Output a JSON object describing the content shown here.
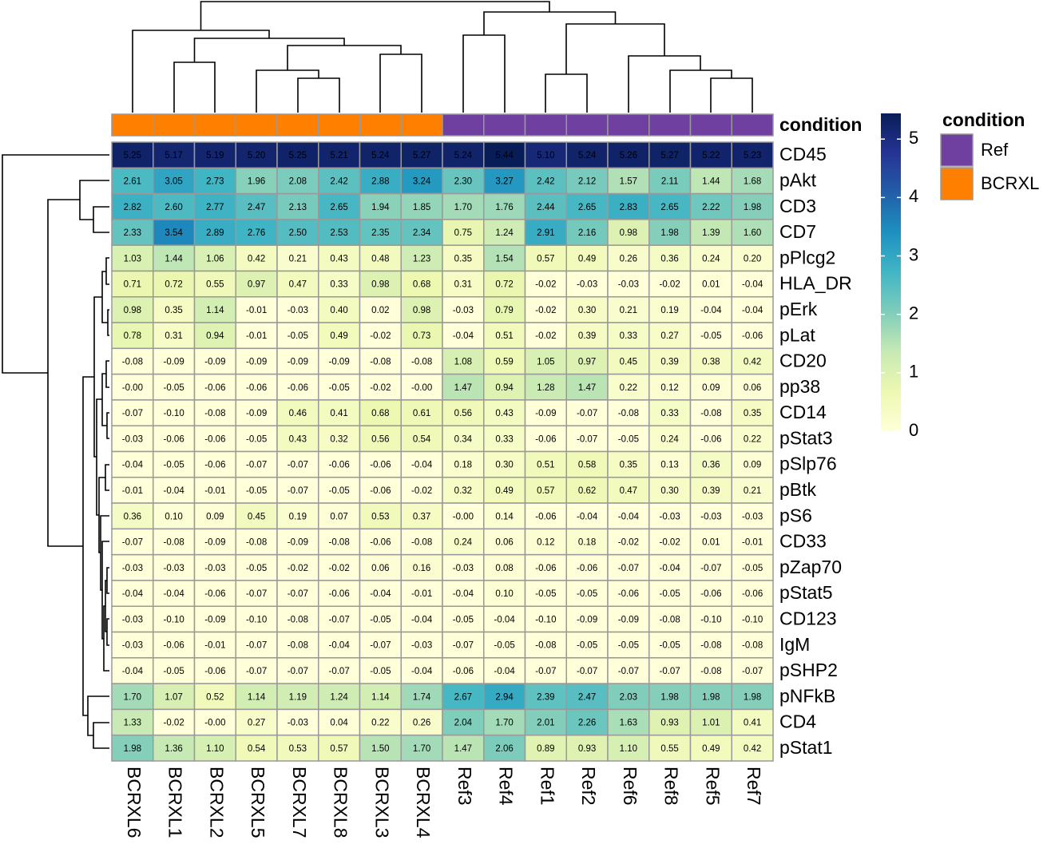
{
  "chart_data": {
    "type": "heatmap",
    "categories": [
      "BCRXL6",
      "BCRXL1",
      "BCRXL2",
      "BCRXL5",
      "BCRXL7",
      "BCRXL8",
      "BCRXL3",
      "BCRXL4",
      "Ref3",
      "Ref4",
      "Ref1",
      "Ref2",
      "Ref6",
      "Ref8",
      "Ref5",
      "Ref7"
    ],
    "rows": [
      "CD45",
      "pAkt",
      "CD3",
      "CD7",
      "pPlcg2",
      "HLA_DR",
      "pErk",
      "pLat",
      "CD20",
      "pp38",
      "CD14",
      "pStat3",
      "pSlp76",
      "pBtk",
      "pS6",
      "CD33",
      "pZap70",
      "pStat5",
      "CD123",
      "IgM",
      "pSHP2",
      "pNFkB",
      "CD4",
      "pStat1"
    ],
    "values": [
      [
        5.25,
        5.17,
        5.19,
        5.2,
        5.25,
        5.21,
        5.24,
        5.27,
        5.24,
        5.44,
        5.1,
        5.24,
        5.26,
        5.27,
        5.22,
        5.23
      ],
      [
        2.61,
        3.05,
        2.73,
        1.96,
        2.08,
        2.42,
        2.88,
        3.24,
        2.3,
        3.27,
        2.42,
        2.12,
        1.57,
        2.11,
        1.44,
        1.68
      ],
      [
        2.82,
        2.6,
        2.77,
        2.47,
        2.13,
        2.65,
        1.94,
        1.85,
        1.7,
        1.76,
        2.44,
        2.65,
        2.83,
        2.65,
        2.22,
        1.98
      ],
      [
        2.33,
        3.54,
        2.89,
        2.76,
        2.5,
        2.53,
        2.35,
        2.34,
        0.75,
        1.24,
        2.91,
        2.16,
        0.98,
        1.98,
        1.39,
        1.6
      ],
      [
        1.03,
        1.44,
        1.06,
        0.42,
        0.21,
        0.43,
        0.48,
        1.23,
        0.35,
        1.54,
        0.57,
        0.49,
        0.26,
        0.36,
        0.24,
        0.2
      ],
      [
        0.71,
        0.72,
        0.55,
        0.97,
        0.47,
        0.33,
        0.98,
        0.68,
        0.31,
        0.72,
        -0.02,
        -0.03,
        -0.03,
        -0.02,
        0.01,
        -0.04
      ],
      [
        0.98,
        0.35,
        1.14,
        -0.01,
        -0.03,
        0.4,
        0.02,
        0.98,
        -0.03,
        0.79,
        -0.02,
        0.3,
        0.21,
        0.19,
        -0.04,
        -0.04
      ],
      [
        0.78,
        0.31,
        0.94,
        -0.01,
        -0.05,
        0.49,
        -0.02,
        0.73,
        -0.04,
        0.51,
        -0.02,
        0.39,
        0.33,
        0.27,
        -0.05,
        -0.06
      ],
      [
        -0.08,
        -0.09,
        -0.09,
        -0.09,
        -0.09,
        -0.09,
        -0.08,
        -0.08,
        1.08,
        0.59,
        1.05,
        0.97,
        0.45,
        0.39,
        0.38,
        0.42
      ],
      [
        -0.0,
        -0.05,
        -0.06,
        -0.06,
        -0.06,
        -0.05,
        -0.02,
        -0.0,
        1.47,
        0.94,
        1.28,
        1.47,
        0.22,
        0.12,
        0.09,
        0.06
      ],
      [
        -0.07,
        -0.1,
        -0.08,
        -0.09,
        0.46,
        0.41,
        0.68,
        0.61,
        0.56,
        0.43,
        -0.09,
        -0.07,
        -0.08,
        0.33,
        -0.08,
        0.35
      ],
      [
        -0.03,
        -0.06,
        -0.06,
        -0.05,
        0.43,
        0.32,
        0.56,
        0.54,
        0.34,
        0.33,
        -0.06,
        -0.07,
        -0.05,
        0.24,
        -0.06,
        0.22
      ],
      [
        -0.04,
        -0.05,
        -0.06,
        -0.07,
        -0.07,
        -0.06,
        -0.06,
        -0.04,
        0.18,
        0.3,
        0.51,
        0.58,
        0.35,
        0.13,
        0.36,
        0.09
      ],
      [
        -0.01,
        -0.04,
        -0.01,
        -0.05,
        -0.07,
        -0.05,
        -0.06,
        -0.02,
        0.32,
        0.49,
        0.57,
        0.62,
        0.47,
        0.3,
        0.39,
        0.21
      ],
      [
        0.36,
        0.1,
        0.09,
        0.45,
        0.19,
        0.07,
        0.53,
        0.37,
        -0.0,
        0.14,
        -0.06,
        -0.04,
        -0.04,
        -0.03,
        -0.03,
        -0.03
      ],
      [
        -0.07,
        -0.08,
        -0.09,
        -0.08,
        -0.09,
        -0.08,
        -0.06,
        -0.08,
        0.24,
        0.06,
        0.12,
        0.18,
        -0.02,
        -0.02,
        0.01,
        -0.01
      ],
      [
        -0.03,
        -0.03,
        -0.03,
        -0.05,
        -0.02,
        -0.02,
        0.06,
        0.16,
        -0.03,
        0.08,
        -0.06,
        -0.06,
        -0.07,
        -0.04,
        -0.07,
        -0.05
      ],
      [
        -0.04,
        -0.04,
        -0.06,
        -0.07,
        -0.07,
        -0.06,
        -0.04,
        -0.01,
        -0.04,
        0.1,
        -0.05,
        -0.05,
        -0.06,
        -0.05,
        -0.06,
        -0.06
      ],
      [
        -0.03,
        -0.1,
        -0.09,
        -0.1,
        -0.08,
        -0.07,
        -0.05,
        -0.04,
        -0.05,
        -0.04,
        -0.1,
        -0.09,
        -0.09,
        -0.08,
        -0.1,
        -0.1
      ],
      [
        -0.03,
        -0.06,
        -0.01,
        -0.07,
        -0.08,
        -0.04,
        -0.07,
        -0.03,
        -0.07,
        -0.05,
        -0.08,
        -0.05,
        -0.05,
        -0.05,
        -0.08,
        -0.08
      ],
      [
        -0.04,
        -0.05,
        -0.06,
        -0.07,
        -0.07,
        -0.07,
        -0.05,
        -0.04,
        -0.06,
        -0.04,
        -0.07,
        -0.07,
        -0.07,
        -0.07,
        -0.08,
        -0.07
      ],
      [
        1.7,
        1.07,
        0.52,
        1.14,
        1.19,
        1.24,
        1.14,
        1.74,
        2.67,
        2.94,
        2.39,
        2.47,
        2.03,
        1.98,
        1.98,
        1.98
      ],
      [
        1.33,
        -0.02,
        -0.0,
        0.27,
        -0.03,
        0.04,
        0.22,
        0.26,
        2.04,
        1.7,
        2.01,
        2.26,
        1.63,
        0.93,
        1.01,
        0.41
      ],
      [
        1.98,
        1.36,
        1.1,
        0.54,
        0.53,
        0.57,
        1.5,
        1.7,
        1.47,
        2.06,
        0.89,
        0.93,
        1.1,
        0.55,
        0.49,
        0.42
      ]
    ],
    "value_labels": [
      [
        "5.25",
        "5.17",
        "5.19",
        "5.20",
        "5.25",
        "5.21",
        "5.24",
        "5.27",
        "5.24",
        "5.44",
        "5.10",
        "5.24",
        "5.26",
        "5.27",
        "5.22",
        "5.23"
      ],
      [
        "2.61",
        "3.05",
        "2.73",
        "1.96",
        "2.08",
        "2.42",
        "2.88",
        "3.24",
        "2.30",
        "3.27",
        "2.42",
        "2.12",
        "1.57",
        "2.11",
        "1.44",
        "1.68"
      ],
      [
        "2.82",
        "2.60",
        "2.77",
        "2.47",
        "2.13",
        "2.65",
        "1.94",
        "1.85",
        "1.70",
        "1.76",
        "2.44",
        "2.65",
        "2.83",
        "2.65",
        "2.22",
        "1.98"
      ],
      [
        "2.33",
        "3.54",
        "2.89",
        "2.76",
        "2.50",
        "2.53",
        "2.35",
        "2.34",
        "0.75",
        "1.24",
        "2.91",
        "2.16",
        "0.98",
        "1.98",
        "1.39",
        "1.60"
      ],
      [
        "1.03",
        "1.44",
        "1.06",
        "0.42",
        "0.21",
        "0.43",
        "0.48",
        "1.23",
        "0.35",
        "1.54",
        "0.57",
        "0.49",
        "0.26",
        "0.36",
        "0.24",
        "0.20"
      ],
      [
        "0.71",
        "0.72",
        "0.55",
        "0.97",
        "0.47",
        "0.33",
        "0.98",
        "0.68",
        "0.31",
        "0.72",
        "-0.02",
        "-0.03",
        "-0.03",
        "-0.02",
        "0.01",
        "-0.04"
      ],
      [
        "0.98",
        "0.35",
        "1.14",
        "-0.01",
        "-0.03",
        "0.40",
        "0.02",
        "0.98",
        "-0.03",
        "0.79",
        "-0.02",
        "0.30",
        "0.21",
        "0.19",
        "-0.04",
        "-0.04"
      ],
      [
        "0.78",
        "0.31",
        "0.94",
        "-0.01",
        "-0.05",
        "0.49",
        "-0.02",
        "0.73",
        "-0.04",
        "0.51",
        "-0.02",
        "0.39",
        "0.33",
        "0.27",
        "-0.05",
        "-0.06"
      ],
      [
        "-0.08",
        "-0.09",
        "-0.09",
        "-0.09",
        "-0.09",
        "-0.09",
        "-0.08",
        "-0.08",
        "1.08",
        "0.59",
        "1.05",
        "0.97",
        "0.45",
        "0.39",
        "0.38",
        "0.42"
      ],
      [
        "-0.00",
        "-0.05",
        "-0.06",
        "-0.06",
        "-0.06",
        "-0.05",
        "-0.02",
        "-0.00",
        "1.47",
        "0.94",
        "1.28",
        "1.47",
        "0.22",
        "0.12",
        "0.09",
        "0.06"
      ],
      [
        "-0.07",
        "-0.10",
        "-0.08",
        "-0.09",
        "0.46",
        "0.41",
        "0.68",
        "0.61",
        "0.56",
        "0.43",
        "-0.09",
        "-0.07",
        "-0.08",
        "0.33",
        "-0.08",
        "0.35"
      ],
      [
        "-0.03",
        "-0.06",
        "-0.06",
        "-0.05",
        "0.43",
        "0.32",
        "0.56",
        "0.54",
        "0.34",
        "0.33",
        "-0.06",
        "-0.07",
        "-0.05",
        "0.24",
        "-0.06",
        "0.22"
      ],
      [
        "-0.04",
        "-0.05",
        "-0.06",
        "-0.07",
        "-0.07",
        "-0.06",
        "-0.06",
        "-0.04",
        "0.18",
        "0.30",
        "0.51",
        "0.58",
        "0.35",
        "0.13",
        "0.36",
        "0.09"
      ],
      [
        "-0.01",
        "-0.04",
        "-0.01",
        "-0.05",
        "-0.07",
        "-0.05",
        "-0.06",
        "-0.02",
        "0.32",
        "0.49",
        "0.57",
        "0.62",
        "0.47",
        "0.30",
        "0.39",
        "0.21"
      ],
      [
        "0.36",
        "0.10",
        "0.09",
        "0.45",
        "0.19",
        "0.07",
        "0.53",
        "0.37",
        "-0.00",
        "0.14",
        "-0.06",
        "-0.04",
        "-0.04",
        "-0.03",
        "-0.03",
        "-0.03"
      ],
      [
        "-0.07",
        "-0.08",
        "-0.09",
        "-0.08",
        "-0.09",
        "-0.08",
        "-0.06",
        "-0.08",
        "0.24",
        "0.06",
        "0.12",
        "0.18",
        "-0.02",
        "-0.02",
        "0.01",
        "-0.01"
      ],
      [
        "-0.03",
        "-0.03",
        "-0.03",
        "-0.05",
        "-0.02",
        "-0.02",
        "0.06",
        "0.16",
        "-0.03",
        "0.08",
        "-0.06",
        "-0.06",
        "-0.07",
        "-0.04",
        "-0.07",
        "-0.05"
      ],
      [
        "-0.04",
        "-0.04",
        "-0.06",
        "-0.07",
        "-0.07",
        "-0.06",
        "-0.04",
        "-0.01",
        "-0.04",
        "0.10",
        "-0.05",
        "-0.05",
        "-0.06",
        "-0.05",
        "-0.06",
        "-0.06"
      ],
      [
        "-0.03",
        "-0.10",
        "-0.09",
        "-0.10",
        "-0.08",
        "-0.07",
        "-0.05",
        "-0.04",
        "-0.05",
        "-0.04",
        "-0.10",
        "-0.09",
        "-0.09",
        "-0.08",
        "-0.10",
        "-0.10"
      ],
      [
        "-0.03",
        "-0.06",
        "-0.01",
        "-0.07",
        "-0.08",
        "-0.04",
        "-0.07",
        "-0.03",
        "-0.07",
        "-0.05",
        "-0.08",
        "-0.05",
        "-0.05",
        "-0.05",
        "-0.08",
        "-0.08"
      ],
      [
        "-0.04",
        "-0.05",
        "-0.06",
        "-0.07",
        "-0.07",
        "-0.07",
        "-0.05",
        "-0.04",
        "-0.06",
        "-0.04",
        "-0.07",
        "-0.07",
        "-0.07",
        "-0.07",
        "-0.08",
        "-0.07"
      ],
      [
        "1.70",
        "1.07",
        "0.52",
        "1.14",
        "1.19",
        "1.24",
        "1.14",
        "1.74",
        "2.67",
        "2.94",
        "2.39",
        "2.47",
        "2.03",
        "1.98",
        "1.98",
        "1.98"
      ],
      [
        "1.33",
        "-0.02",
        "-0.00",
        "0.27",
        "-0.03",
        "0.04",
        "0.22",
        "0.26",
        "2.04",
        "1.70",
        "2.01",
        "2.26",
        "1.63",
        "0.93",
        "1.01",
        "0.41"
      ],
      [
        "1.98",
        "1.36",
        "1.10",
        "0.54",
        "0.53",
        "0.57",
        "1.50",
        "1.70",
        "1.47",
        "2.06",
        "0.89",
        "0.93",
        "1.10",
        "0.55",
        "0.49",
        "0.42"
      ]
    ],
    "annotation_label": "condition",
    "condition": [
      "BCRXL",
      "BCRXL",
      "BCRXL",
      "BCRXL",
      "BCRXL",
      "BCRXL",
      "BCRXL",
      "BCRXL",
      "Ref",
      "Ref",
      "Ref",
      "Ref",
      "Ref",
      "Ref",
      "Ref",
      "Ref"
    ],
    "legend": {
      "title": "condition",
      "items": [
        {
          "name": "Ref",
          "color": "#7040a0"
        },
        {
          "name": "BCRXL",
          "color": "#ff7f00"
        }
      ]
    },
    "colorscale": [
      "#ffffd9",
      "#edf8b1",
      "#c7e9b4",
      "#7fcdbb",
      "#41b6c4",
      "#1d91c0",
      "#225ea8",
      "#253494",
      "#081d58"
    ],
    "colorbar_lim": [
      0,
      5.44
    ],
    "colorbar_ticks": [
      0,
      1,
      2,
      3,
      4,
      5
    ]
  }
}
